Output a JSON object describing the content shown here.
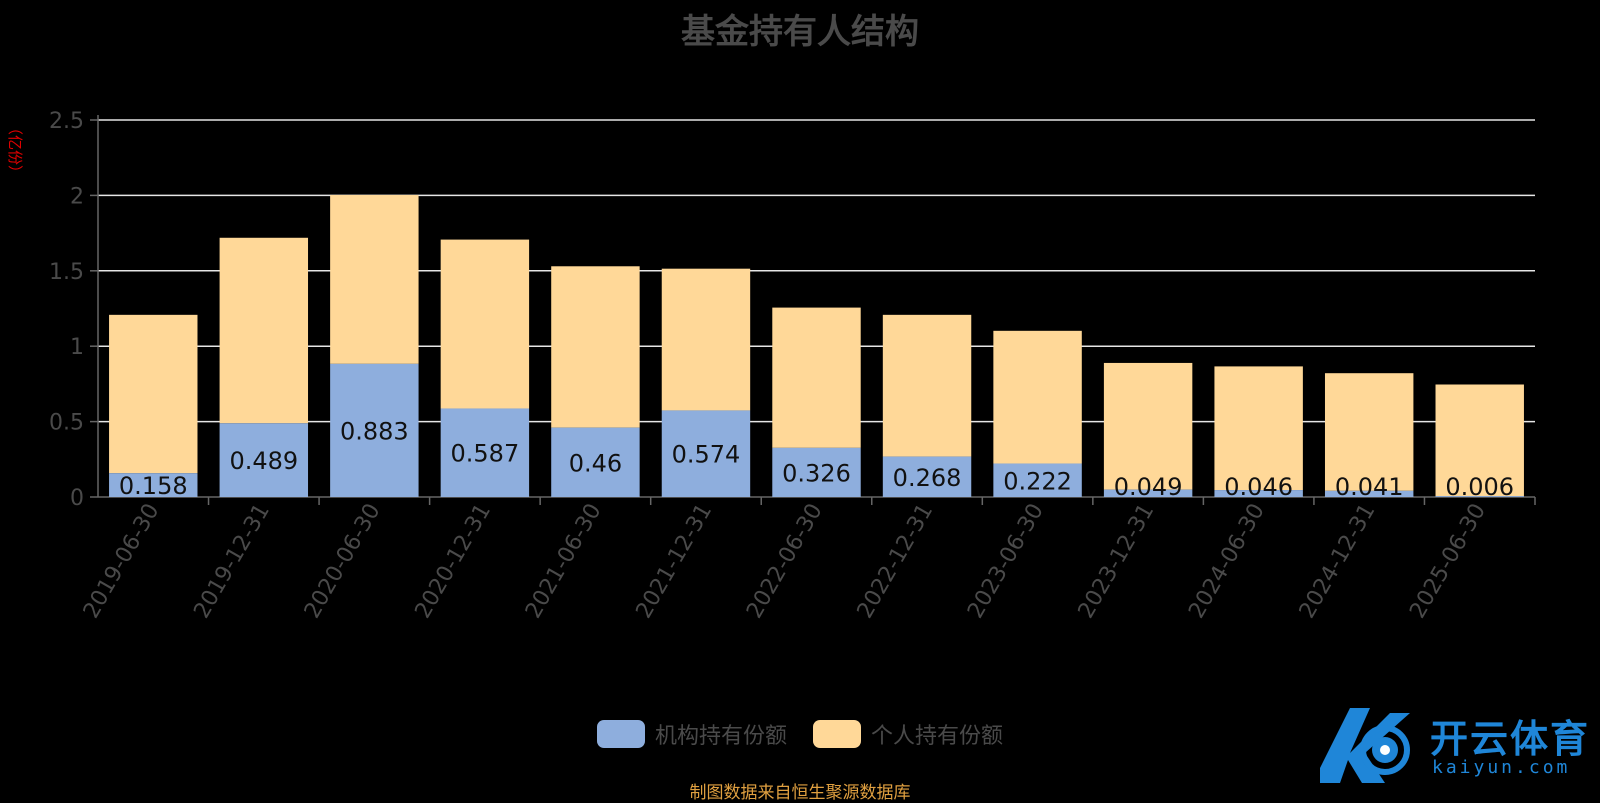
{
  "chart_data": {
    "type": "bar",
    "stacked": true,
    "title": "基金持有人结构",
    "ylabel": "（亿份）",
    "ylim": [
      0,
      2.5
    ],
    "yticks": [
      "0",
      "0.5",
      "1",
      "1.5",
      "2",
      "2.5"
    ],
    "grid": true,
    "legend_position": "bottom",
    "categories": [
      "2019-06-30",
      "2019-12-31",
      "2020-06-30",
      "2020-12-31",
      "2021-06-30",
      "2021-12-31",
      "2022-06-30",
      "2022-12-31",
      "2023-06-30",
      "2023-12-31",
      "2024-06-30",
      "2024-12-31",
      "2025-06-30"
    ],
    "series": [
      {
        "name": "机构持有份额",
        "color": "#8eaedd",
        "values": [
          0.158,
          0.489,
          0.883,
          0.587,
          0.46,
          0.574,
          0.326,
          0.268,
          0.222,
          0.049,
          0.046,
          0.041,
          0.006
        ],
        "labels": [
          "0.158",
          "0.489",
          "0.883",
          "0.587",
          "0.46",
          "0.574",
          "0.326",
          "0.268",
          "0.222",
          "0.049",
          "0.046",
          "0.041",
          "0.006"
        ]
      },
      {
        "name": "个人持有份额",
        "color": "#ffd898",
        "values": [
          1.05,
          1.23,
          1.12,
          1.12,
          1.07,
          0.94,
          0.93,
          0.94,
          0.88,
          0.84,
          0.82,
          0.78,
          0.74
        ]
      }
    ]
  },
  "footer": {
    "source_note": "制图数据来自恒生聚源数据库"
  },
  "watermark": {
    "name_cn": "开云体育",
    "domain": "kaiyun.com"
  }
}
